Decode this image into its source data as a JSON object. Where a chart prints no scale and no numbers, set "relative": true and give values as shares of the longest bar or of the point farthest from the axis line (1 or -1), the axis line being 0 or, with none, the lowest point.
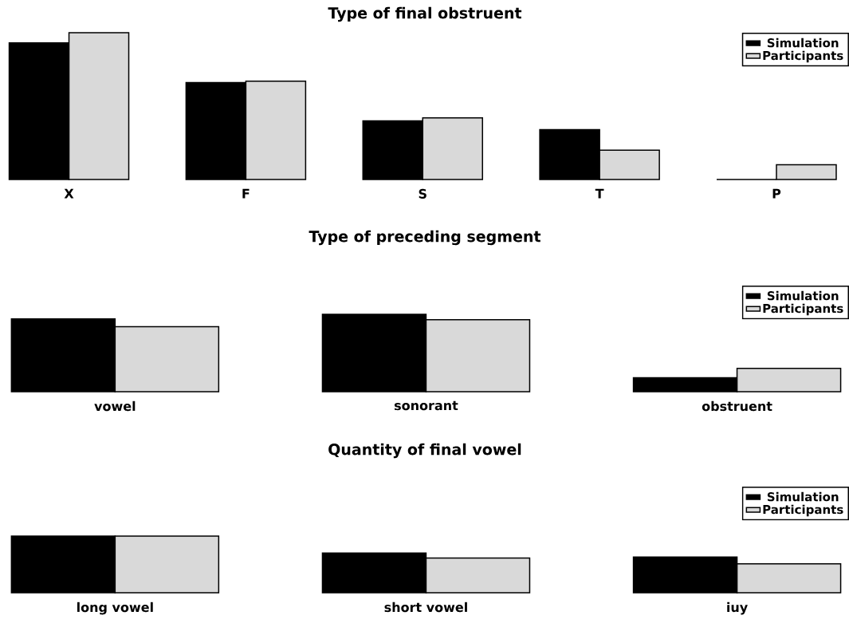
{
  "chart_data": [
    {
      "type": "bar",
      "title": "Type of final obstruent",
      "categories": [
        "X",
        "F",
        "S",
        "T",
        "P"
      ],
      "relative": true,
      "legend": "top right",
      "series": [
        {
          "name": "Simulation",
          "color": "#000000",
          "values": [
            0.93,
            0.66,
            0.4,
            0.34,
            0
          ]
        },
        {
          "name": "Participants",
          "color": "#d9d9d9",
          "values": [
            1,
            0.67,
            0.42,
            0.2,
            0.1
          ]
        }
      ]
    },
    {
      "type": "bar",
      "title": "Type of preceding segment",
      "categories": [
        "vowel",
        "sonorant",
        "obstruent"
      ],
      "relative": true,
      "legend": "top right",
      "series": [
        {
          "name": "Simulation",
          "color": "#000000",
          "values": [
            0.94,
            1,
            0.18
          ]
        },
        {
          "name": "Participants",
          "color": "#d9d9d9",
          "values": [
            0.84,
            0.93,
            0.3
          ]
        }
      ]
    },
    {
      "type": "bar",
      "title": "Quantity of final vowel",
      "categories": [
        "long vowel",
        "short vowel",
        "iuy"
      ],
      "relative": true,
      "legend": "top right",
      "series": [
        {
          "name": "Simulation",
          "color": "#000000",
          "values": [
            1,
            0.7,
            0.63
          ]
        },
        {
          "name": "Participants",
          "color": "#d9d9d9",
          "values": [
            1,
            0.61,
            0.51
          ]
        }
      ]
    }
  ]
}
